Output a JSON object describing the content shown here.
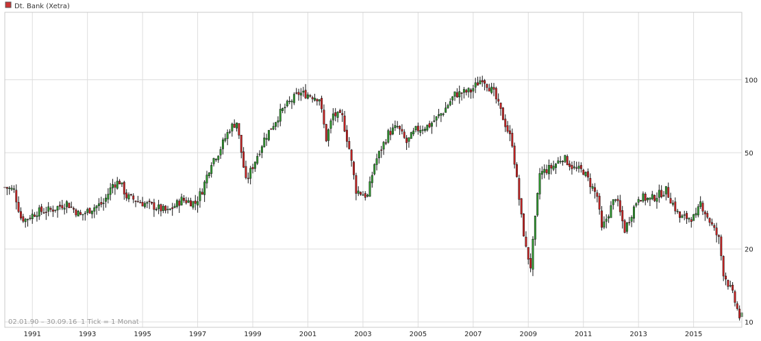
{
  "legend": {
    "label": "Dt. Bank (Xetra)",
    "color": "#cc3333"
  },
  "info": {
    "range": "02.01.90 – 30.09.16",
    "interval": "1 Tick = 1 Monat"
  },
  "colors": {
    "up": "#2e9b2e",
    "down": "#cc2222",
    "grid": "#dddddd",
    "axis_text": "#222222"
  },
  "chart_data": {
    "type": "candlestick",
    "series_name": "Dt. Bank (Xetra)",
    "x_range": [
      "1990-01",
      "2016-09"
    ],
    "x_ticks": [
      "1991",
      "1993",
      "1995",
      "1997",
      "1999",
      "2001",
      "2003",
      "2005",
      "2007",
      "2009",
      "2011",
      "2013",
      "2015"
    ],
    "y_scale": "log",
    "y_ticks": [
      10,
      20,
      50,
      100
    ],
    "y_range": [
      9.5,
      190
    ],
    "grid": true,
    "anchors": [
      [
        "1990-01",
        36
      ],
      [
        "1990-05",
        35
      ],
      [
        "1990-08",
        27
      ],
      [
        "1990-10",
        26.5
      ],
      [
        "1991-03",
        28.5
      ],
      [
        "1991-09",
        29
      ],
      [
        "1992-04",
        31
      ],
      [
        "1992-10",
        27.5
      ],
      [
        "1993-03",
        29.5
      ],
      [
        "1993-08",
        31
      ],
      [
        "1993-12",
        37
      ],
      [
        "1994-03",
        38
      ],
      [
        "1994-06",
        33
      ],
      [
        "1995-01",
        31
      ],
      [
        "1995-06",
        30
      ],
      [
        "1995-12",
        28.5
      ],
      [
        "1996-06",
        32
      ],
      [
        "1996-12",
        31
      ],
      [
        "1997-03",
        35
      ],
      [
        "1997-07",
        46
      ],
      [
        "1997-10",
        50
      ],
      [
        "1998-03",
        63
      ],
      [
        "1998-06",
        67
      ],
      [
        "1998-07",
        58
      ],
      [
        "1998-10",
        38
      ],
      [
        "1999-01",
        44
      ],
      [
        "1999-06",
        57
      ],
      [
        "2000-01",
        73
      ],
      [
        "2000-03",
        77
      ],
      [
        "2000-09",
        88
      ],
      [
        "2001-01",
        87
      ],
      [
        "2001-06",
        84
      ],
      [
        "2001-09",
        57
      ],
      [
        "2001-12",
        72
      ],
      [
        "2002-04",
        70
      ],
      [
        "2002-07",
        52
      ],
      [
        "2002-10",
        35
      ],
      [
        "2003-03",
        33
      ],
      [
        "2003-06",
        45
      ],
      [
        "2003-12",
        60
      ],
      [
        "2004-04",
        64
      ],
      [
        "2004-08",
        55
      ],
      [
        "2004-12",
        62
      ],
      [
        "2005-06",
        65
      ],
      [
        "2005-12",
        74
      ],
      [
        "2006-05",
        87
      ],
      [
        "2006-12",
        90
      ],
      [
        "2007-05",
        102
      ],
      [
        "2007-10",
        88
      ],
      [
        "2008-01",
        74
      ],
      [
        "2008-06",
        55
      ],
      [
        "2008-10",
        27
      ],
      [
        "2008-12",
        20
      ],
      [
        "2009-02",
        17
      ],
      [
        "2009-06",
        41
      ],
      [
        "2009-12",
        44
      ],
      [
        "2010-04",
        48
      ],
      [
        "2010-09",
        43
      ],
      [
        "2011-01",
        42
      ],
      [
        "2011-07",
        33
      ],
      [
        "2011-09",
        24
      ],
      [
        "2012-03",
        33
      ],
      [
        "2012-07",
        24
      ],
      [
        "2013-01",
        33
      ],
      [
        "2013-06",
        32
      ],
      [
        "2014-01",
        35
      ],
      [
        "2014-07",
        27
      ],
      [
        "2015-02",
        27
      ],
      [
        "2015-04",
        31
      ],
      [
        "2015-09",
        25
      ],
      [
        "2015-12",
        22
      ],
      [
        "2016-02",
        16
      ],
      [
        "2016-06",
        13
      ],
      [
        "2016-09",
        10.5
      ]
    ]
  }
}
